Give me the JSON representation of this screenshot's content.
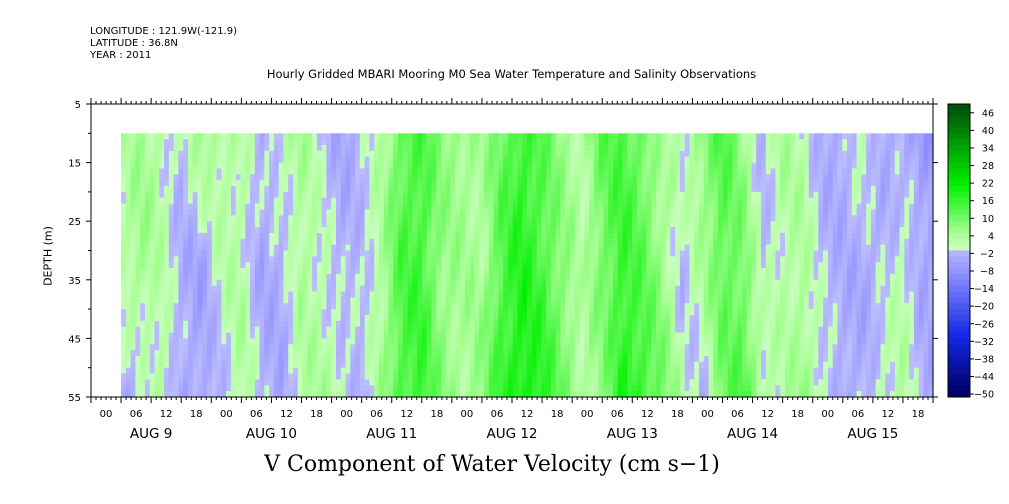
{
  "header": {
    "longitude": "LONGITUDE : 121.9W(-121.9)",
    "latitude": "LATITUDE : 36.8N",
    "year": "YEAR : 2011"
  },
  "chart_data": {
    "type": "heatmap",
    "title": "Hourly Gridded MBARI Mooring M0 Sea Water Temperature and Salinity Observations",
    "xlabel": "V Component of Water Velocity (cm s−1)",
    "ylabel": "DEPTH (m)",
    "y_axis": {
      "inverted": true,
      "range": [
        5,
        55
      ],
      "ticks": [
        5,
        15,
        25,
        35,
        45,
        55
      ],
      "data_depth_range": [
        10,
        55
      ]
    },
    "x_axis": {
      "unit": "hours since AUG 8 21:00",
      "range": [
        0,
        168
      ],
      "data_start_hour": 6,
      "hour_ticks": [
        "00",
        "06",
        "12",
        "18",
        "00",
        "06",
        "12",
        "18",
        "00",
        "06",
        "12",
        "18",
        "00",
        "06",
        "12",
        "18",
        "00",
        "06",
        "12",
        "18",
        "00",
        "06",
        "12",
        "18",
        "00",
        "06",
        "12",
        "18"
      ],
      "day_labels": [
        "AUG  9",
        "AUG 10",
        "AUG 11",
        "AUG 12",
        "AUG 13",
        "AUG 14",
        "AUG 15"
      ]
    },
    "colorbar": {
      "levels": [
        48,
        46,
        44,
        42,
        40,
        38,
        36,
        34,
        32,
        30,
        28,
        26,
        24,
        22,
        20,
        18,
        16,
        14,
        12,
        10,
        8,
        6,
        4,
        2,
        0,
        -2,
        -4,
        -6,
        -8,
        -10,
        -12,
        -14,
        -16,
        -18,
        -20,
        -22,
        -24,
        -26,
        -28,
        -30,
        -32,
        -34,
        -36,
        -38,
        -40,
        -42,
        -44,
        -46,
        -48,
        -50
      ],
      "labels": [
        "46",
        "40",
        "34",
        "28",
        "22",
        "16",
        "10",
        "4",
        "−2",
        "−8",
        "−14",
        "−20",
        "−26",
        "−32",
        "−38",
        "−44",
        "−50"
      ]
    },
    "field": {
      "description_hours": [
        6,
        10,
        14,
        18,
        22,
        26,
        30,
        34,
        38,
        42,
        46,
        50,
        54,
        58,
        62,
        66,
        70,
        74,
        78,
        82,
        86,
        90,
        94,
        98,
        102,
        106,
        110,
        114,
        118,
        122,
        126,
        130,
        134,
        138,
        142,
        146,
        150,
        154,
        158,
        162,
        166
      ],
      "v_top": [
        2,
        5,
        3,
        -1,
        6,
        4,
        2,
        -2,
        3,
        5,
        -1,
        -4,
        -2,
        3,
        12,
        14,
        8,
        6,
        4,
        11,
        16,
        12,
        6,
        3,
        12,
        14,
        10,
        3,
        2,
        8,
        14,
        6,
        -2,
        4,
        2,
        -3,
        -4,
        3,
        -3,
        -4,
        -6
      ],
      "v_mid": [
        3,
        6,
        2,
        -3,
        -5,
        2,
        3,
        -4,
        -3,
        4,
        2,
        -3,
        -1,
        4,
        14,
        15,
        6,
        5,
        4,
        14,
        18,
        14,
        8,
        2,
        10,
        16,
        12,
        6,
        -2,
        4,
        12,
        10,
        -1,
        3,
        4,
        -2,
        -3,
        -4,
        -2,
        2,
        -4
      ],
      "v_bot": [
        -4,
        -2,
        4,
        -3,
        -4,
        -2,
        4,
        -2,
        -4,
        3,
        4,
        2,
        -3,
        5,
        14,
        16,
        8,
        4,
        8,
        16,
        20,
        18,
        10,
        4,
        6,
        18,
        16,
        10,
        2,
        -2,
        10,
        14,
        4,
        2,
        6,
        2,
        -4,
        -3,
        2,
        3,
        -3
      ]
    }
  }
}
